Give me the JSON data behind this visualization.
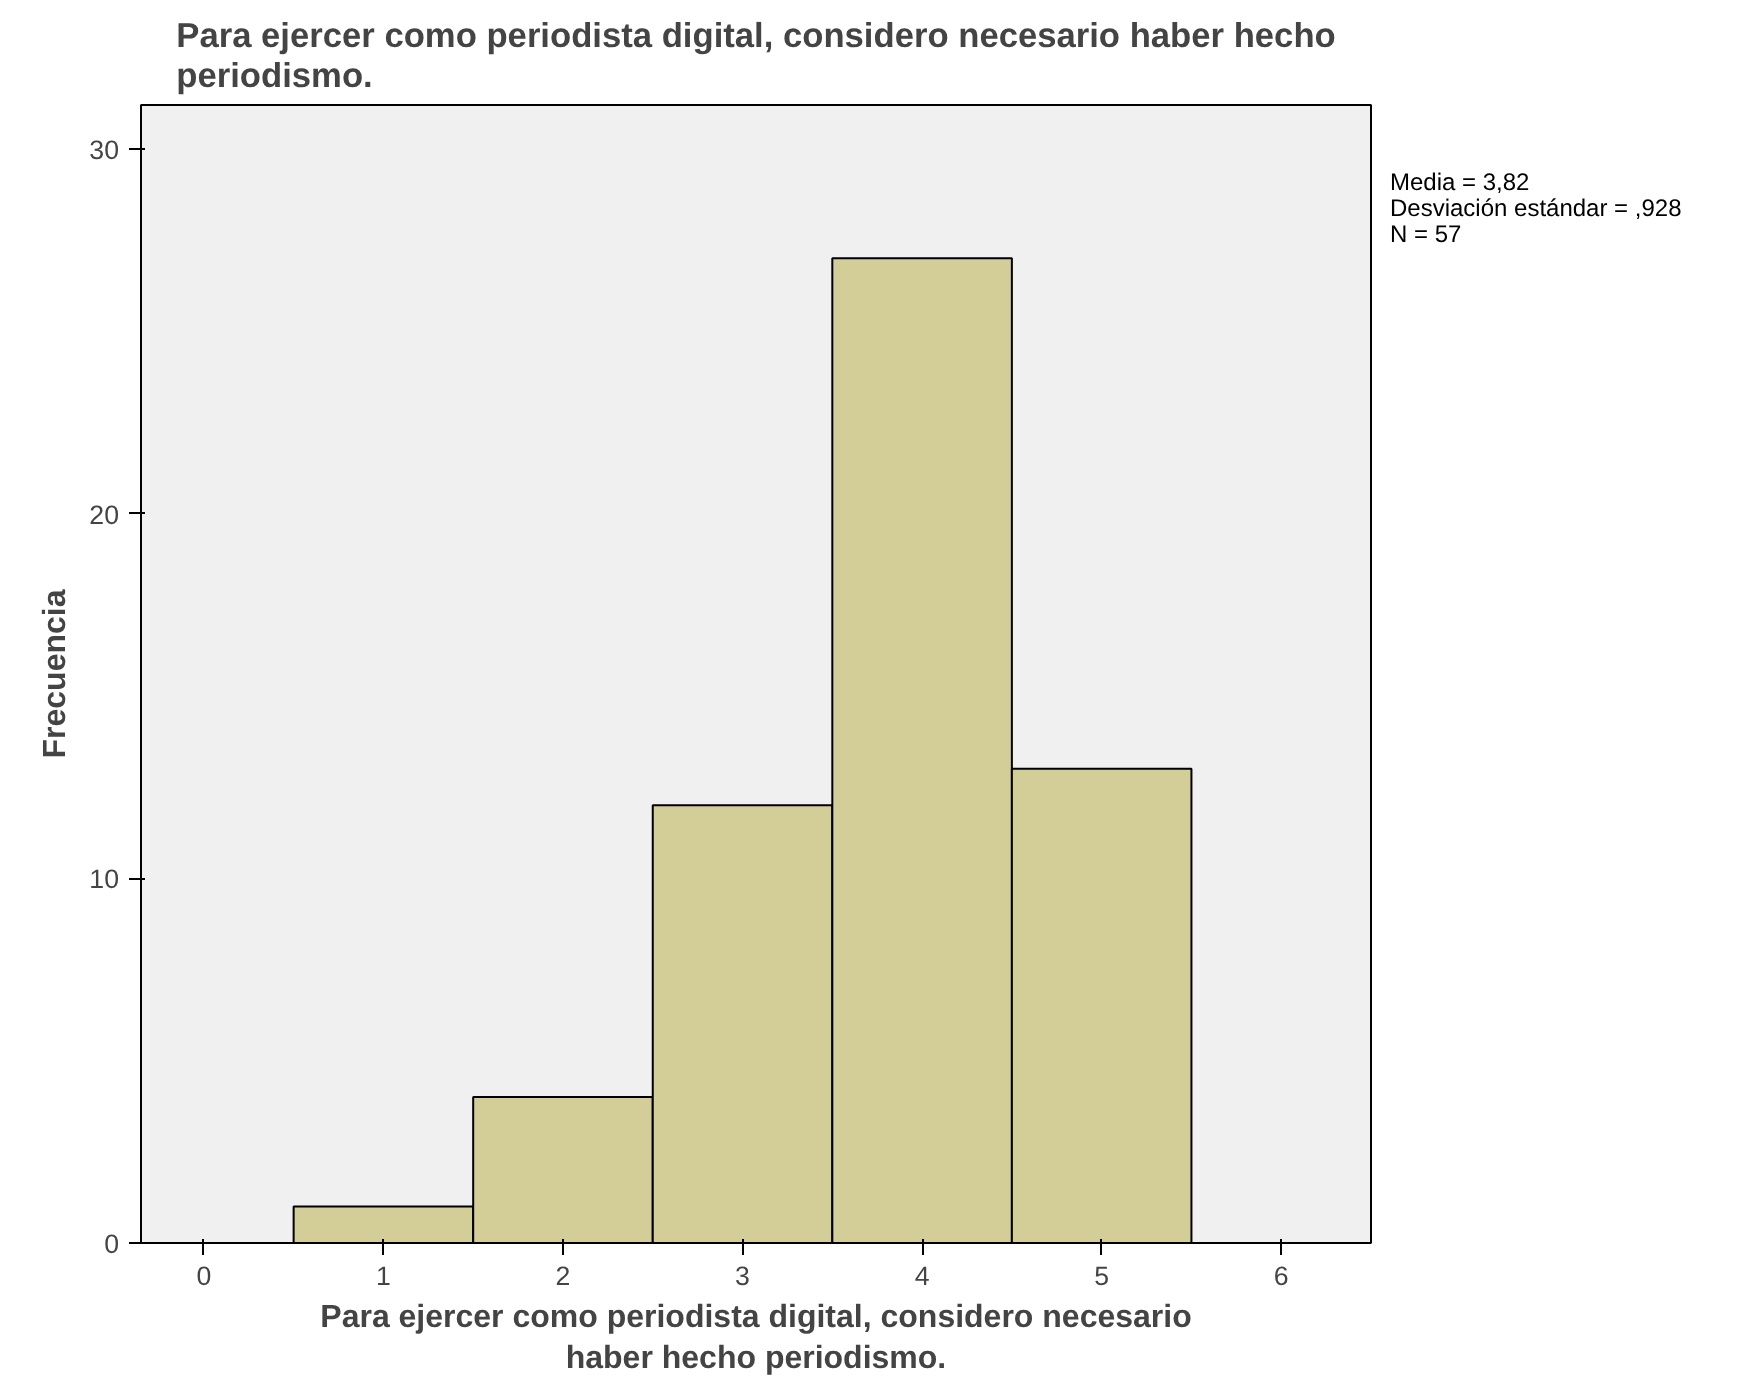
{
  "chart_data": {
    "type": "histogram",
    "title": "Para ejercer como periodista digital, considero necesario haber hecho periodismo.",
    "xlabel": "Para ejercer como periodista digital, considero necesario haber hecho periodismo.",
    "ylabel": "Frecuencia",
    "bins": [
      0.5,
      1.5,
      2.5,
      3.5,
      4.5,
      5.5
    ],
    "values": [
      1,
      4,
      12,
      27,
      13
    ],
    "color": "#d3ce97",
    "xlim": [
      -0.35,
      6.5
    ],
    "ylim": [
      0,
      31.2
    ],
    "xticks": [
      0,
      1,
      2,
      3,
      4,
      5,
      6
    ],
    "yticks": [
      0,
      10,
      20,
      30
    ],
    "grid": false,
    "annotations": [
      "Media = 3,82",
      "Desviación estándar = ,928",
      "N = 57"
    ]
  }
}
